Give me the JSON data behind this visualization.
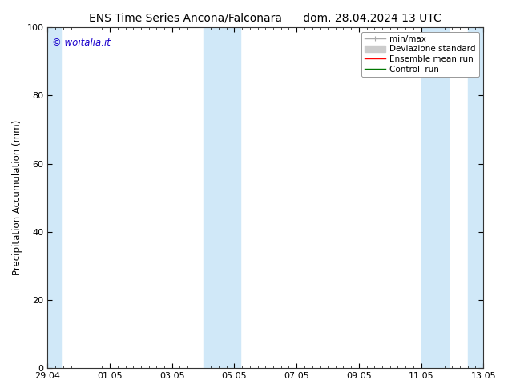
{
  "title": "ENS Time Series Ancona/Falconara",
  "title2": "dom. 28.04.2024 13 UTC",
  "ylabel": "Precipitation Accumulation (mm)",
  "ylim": [
    0,
    100
  ],
  "yticks": [
    0,
    20,
    40,
    60,
    80,
    100
  ],
  "xtick_labels": [
    "29.04",
    "01.05",
    "03.05",
    "05.05",
    "07.05",
    "09.05",
    "11.05",
    "13.05"
  ],
  "watermark": "© woitalia.it",
  "watermark_color": "#1a00cc",
  "background_color": "#ffffff",
  "plot_bg_color": "#ffffff",
  "shaded_band_color": "#d0e8f8",
  "legend_entries": [
    {
      "label": "min/max",
      "color": "#aaaaaa",
      "lw": 1
    },
    {
      "label": "Deviazione standard",
      "color": "#cccccc",
      "lw": 5
    },
    {
      "label": "Ensemble mean run",
      "color": "#ff0000",
      "lw": 1
    },
    {
      "label": "Controll run",
      "color": "#007700",
      "lw": 1
    }
  ],
  "font_size_title": 10,
  "font_size_ticks": 8,
  "font_size_legend": 7.5,
  "font_size_ylabel": 8.5,
  "font_size_watermark": 8.5,
  "xlim": [
    0,
    14
  ],
  "x_ticks": [
    0,
    2,
    4,
    6,
    8,
    10,
    12,
    14
  ],
  "shaded_regions": [
    [
      0.0,
      0.45
    ],
    [
      5.0,
      6.2
    ],
    [
      12.0,
      12.9
    ],
    [
      13.5,
      14.0
    ]
  ]
}
